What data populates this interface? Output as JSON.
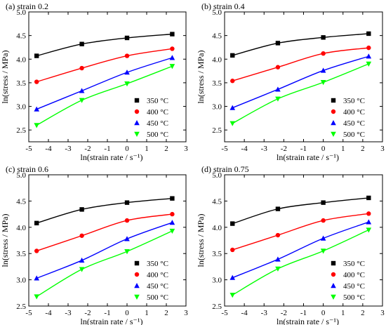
{
  "chart_data": [
    {
      "type": "line",
      "title": "(a) strain 0.2",
      "xlabel": "ln(strain rate / s⁻¹)",
      "ylabel": "ln(stress / MPa)",
      "xlim": [
        -5,
        3
      ],
      "ylim": [
        2.25,
        5.0
      ],
      "xticks": [
        "-5",
        "-4",
        "-3",
        "-2",
        "-1",
        "0",
        "1",
        "2",
        "3"
      ],
      "yticks": [
        "2.5",
        "3.0",
        "3.5",
        "4.0",
        "4.5",
        "5.0"
      ],
      "x": [
        -4.6,
        -2.3,
        0,
        2.3
      ],
      "series": [
        {
          "name": "350 °C",
          "color": "#000000",
          "marker": "square",
          "values": [
            4.07,
            4.32,
            4.45,
            4.53
          ]
        },
        {
          "name": "400 °C",
          "color": "#ff0000",
          "marker": "circle",
          "values": [
            3.52,
            3.81,
            4.07,
            4.22
          ]
        },
        {
          "name": "450 °C",
          "color": "#0000ff",
          "marker": "triangle-up",
          "values": [
            2.94,
            3.33,
            3.72,
            4.03
          ]
        },
        {
          "name": "500 °C",
          "color": "#00ff00",
          "marker": "triangle-down",
          "values": [
            2.6,
            3.13,
            3.48,
            3.85
          ]
        }
      ],
      "legend": "bottom-right"
    },
    {
      "type": "line",
      "title": "(b) strain 0.4",
      "xlabel": "ln(strain rate / s⁻¹)",
      "ylabel": "ln(stress / MPa)",
      "xlim": [
        -5,
        3
      ],
      "ylim": [
        2.25,
        5.0
      ],
      "xticks": [
        "-5",
        "-4",
        "-3",
        "-2",
        "-1",
        "0",
        "1",
        "2",
        "3"
      ],
      "yticks": [
        "2.5",
        "3.0",
        "3.5",
        "4.0",
        "4.5",
        "5.0"
      ],
      "x": [
        -4.6,
        -2.3,
        0,
        2.3
      ],
      "series": [
        {
          "name": "350 °C",
          "color": "#000000",
          "marker": "square",
          "values": [
            4.08,
            4.34,
            4.46,
            4.54
          ]
        },
        {
          "name": "400 °C",
          "color": "#ff0000",
          "marker": "circle",
          "values": [
            3.54,
            3.83,
            4.12,
            4.24
          ]
        },
        {
          "name": "450 °C",
          "color": "#0000ff",
          "marker": "triangle-up",
          "values": [
            2.97,
            3.36,
            3.76,
            4.06
          ]
        },
        {
          "name": "500 °C",
          "color": "#00ff00",
          "marker": "triangle-down",
          "values": [
            2.64,
            3.16,
            3.51,
            3.9
          ]
        }
      ],
      "legend": "bottom-right"
    },
    {
      "type": "line",
      "title": "(c) strain 0.6",
      "xlabel": "ln(strain rate / s⁻¹)",
      "ylabel": "ln(stress / MPa)",
      "xlim": [
        -5,
        3
      ],
      "ylim": [
        2.5,
        5.0
      ],
      "xticks": [
        "-5",
        "-4",
        "-3",
        "-2",
        "-1",
        "0",
        "1",
        "2",
        "3"
      ],
      "yticks": [
        "2.5",
        "3.0",
        "3.5",
        "4.0",
        "4.5",
        "5.0"
      ],
      "x": [
        -4.6,
        -2.3,
        0,
        2.3
      ],
      "series": [
        {
          "name": "350 °C",
          "color": "#000000",
          "marker": "square",
          "values": [
            4.08,
            4.34,
            4.47,
            4.55
          ]
        },
        {
          "name": "400 °C",
          "color": "#ff0000",
          "marker": "circle",
          "values": [
            3.55,
            3.84,
            4.13,
            4.25
          ]
        },
        {
          "name": "450 °C",
          "color": "#0000ff",
          "marker": "triangle-up",
          "values": [
            3.03,
            3.37,
            3.78,
            4.09
          ]
        },
        {
          "name": "500 °C",
          "color": "#00ff00",
          "marker": "triangle-down",
          "values": [
            2.68,
            3.2,
            3.54,
            3.93
          ]
        }
      ],
      "legend": "bottom-right"
    },
    {
      "type": "line",
      "title": "(d) strain 0.75",
      "xlabel": "ln(strain rate / s⁻¹)",
      "ylabel": "ln(stress / MPa)",
      "xlim": [
        -5,
        3
      ],
      "ylim": [
        2.5,
        5.0
      ],
      "xticks": [
        "-5",
        "-4",
        "-3",
        "-2",
        "-1",
        "0",
        "1",
        "2",
        "3"
      ],
      "yticks": [
        "2.5",
        "3.0",
        "3.5",
        "4.0",
        "4.5",
        "5.0"
      ],
      "x": [
        -4.6,
        -2.3,
        0,
        2.3
      ],
      "series": [
        {
          "name": "350 °C",
          "color": "#000000",
          "marker": "square",
          "values": [
            4.07,
            4.35,
            4.47,
            4.56
          ]
        },
        {
          "name": "400 °C",
          "color": "#ff0000",
          "marker": "circle",
          "values": [
            3.57,
            3.85,
            4.13,
            4.26
          ]
        },
        {
          "name": "450 °C",
          "color": "#0000ff",
          "marker": "triangle-up",
          "values": [
            3.04,
            3.39,
            3.79,
            4.1
          ]
        },
        {
          "name": "500 °C",
          "color": "#00ff00",
          "marker": "triangle-down",
          "values": [
            2.71,
            3.21,
            3.55,
            3.95
          ]
        }
      ],
      "legend": "bottom-right"
    }
  ]
}
